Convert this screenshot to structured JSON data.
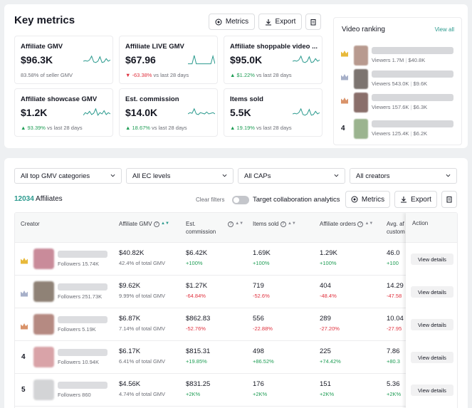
{
  "key_metrics": {
    "title": "Key metrics",
    "metrics_btn": "Metrics",
    "export_btn": "Export",
    "cards": [
      {
        "label": "Affiliate GMV",
        "value": "$96.3K",
        "change": "83.58%",
        "suffix": "of seller GMV",
        "trend": "none",
        "spark": [
          0.5,
          0.55,
          0.5,
          0.6,
          0.9,
          0.45,
          0.4,
          0.5,
          0.85,
          0.4,
          0.45,
          0.7,
          0.5,
          0.6
        ]
      },
      {
        "label": "Affiliate LIVE GMV",
        "value": "$67.96",
        "change": "-63.38%",
        "suffix": "vs last 28 days",
        "trend": "down",
        "spark": [
          0.3,
          0.3,
          0.3,
          0.95,
          0.3,
          0.3,
          0.3,
          0.3,
          0.3,
          0.3,
          0.3,
          0.3,
          0.9,
          0.3
        ]
      },
      {
        "label": "Affiliate shoppable video ...",
        "value": "$95.0K",
        "change": "$1.22%",
        "suffix": "vs last 28 days",
        "trend": "up",
        "spark": [
          0.5,
          0.55,
          0.5,
          0.6,
          0.9,
          0.45,
          0.4,
          0.5,
          0.85,
          0.4,
          0.45,
          0.7,
          0.5,
          0.6
        ]
      },
      {
        "label": "Affiliate showcase GMV",
        "value": "$1.2K",
        "change": "93.39%",
        "suffix": "vs last 28 days",
        "trend": "up",
        "spark": [
          0.4,
          0.6,
          0.5,
          0.7,
          0.45,
          0.55,
          0.9,
          0.4,
          0.6,
          0.5,
          0.75,
          0.45,
          0.6,
          0.5
        ]
      },
      {
        "label": "Est. commission",
        "value": "$14.0K",
        "change": "18.67%",
        "suffix": "vs last 28 days",
        "trend": "up",
        "spark": [
          0.5,
          0.6,
          0.55,
          0.9,
          0.5,
          0.45,
          0.6,
          0.55,
          0.5,
          0.65,
          0.5,
          0.55,
          0.6,
          0.5
        ]
      },
      {
        "label": "Items sold",
        "value": "5.5K",
        "change": "19.19%",
        "suffix": "vs last 28 days",
        "trend": "up",
        "spark": [
          0.5,
          0.55,
          0.5,
          0.6,
          0.9,
          0.45,
          0.4,
          0.5,
          0.85,
          0.4,
          0.45,
          0.7,
          0.5,
          0.6
        ]
      }
    ]
  },
  "video_ranking": {
    "title": "Video ranking",
    "view_all": "View all",
    "items": [
      {
        "rank": "",
        "medal": "gold",
        "thumb": "#b89a8f",
        "viewers": "Viewers 1.7M",
        "gmv": "$40.8K"
      },
      {
        "rank": "",
        "medal": "silver",
        "thumb": "#7c7470",
        "viewers": "Viewers 543.0K",
        "gmv": "$9.6K"
      },
      {
        "rank": "",
        "medal": "bronze",
        "thumb": "#8a6f6b",
        "viewers": "Viewers 157.6K",
        "gmv": "$6.3K"
      },
      {
        "rank": "4",
        "medal": "",
        "thumb": "#9bb48f",
        "viewers": "Viewers 125.4K",
        "gmv": "$6.2K"
      }
    ]
  },
  "filters": {
    "categories": "All top GMV categories",
    "ec_levels": "All EC levels",
    "caps": "All CAPs",
    "creators": "All creators",
    "affiliate_count": "12034",
    "affiliate_label": "Affiliates",
    "clear_filters": "Clear filters",
    "toggle_label": "Target collaboration analytics",
    "metrics_btn": "Metrics",
    "export_btn": "Export"
  },
  "table": {
    "headers": {
      "creator": "Creator",
      "gmv": "Affiliate GMV",
      "commission_1": "Est.",
      "commission_2": "commission",
      "items": "Items sold",
      "orders": "Affiliate orders",
      "avg_1": "Avg. af",
      "avg_2": "custom",
      "action": "Action"
    },
    "details_label": "View details",
    "rows": [
      {
        "rank": "",
        "medal": "gold",
        "avatar": "#c98b9a",
        "followers": "Followers 15.74K",
        "gmv": "$40.82K",
        "gmv_sub": "42.4% of total GMV",
        "commission": "$6.42K",
        "commission_chg": "+100%",
        "commission_trend": "up",
        "items": "1.69K",
        "items_chg": "+100%",
        "items_trend": "up",
        "orders": "1.29K",
        "orders_chg": "+100%",
        "orders_trend": "up",
        "avg": "46.0",
        "avg_chg": "+100",
        "avg_trend": "up"
      },
      {
        "rank": "",
        "medal": "silver",
        "avatar": "#8f8276",
        "followers": "Followers 251.73K",
        "gmv": "$9.62K",
        "gmv_sub": "9.99% of total GMV",
        "commission": "$1.27K",
        "commission_chg": "-64.84%",
        "commission_trend": "down",
        "items": "719",
        "items_chg": "-52.6%",
        "items_trend": "down",
        "orders": "404",
        "orders_chg": "-48.4%",
        "orders_trend": "down",
        "avg": "14.29",
        "avg_chg": "-47.58",
        "avg_trend": "down"
      },
      {
        "rank": "",
        "medal": "bronze",
        "avatar": "#b58a82",
        "followers": "Followers 5.19K",
        "gmv": "$6.87K",
        "gmv_sub": "7.14% of total GMV",
        "commission": "$862.83",
        "commission_chg": "-52.76%",
        "commission_trend": "down",
        "items": "556",
        "items_chg": "-22.88%",
        "items_trend": "down",
        "orders": "289",
        "orders_chg": "-27.20%",
        "orders_trend": "down",
        "avg": "10.04",
        "avg_chg": "-27.95",
        "avg_trend": "down"
      },
      {
        "rank": "4",
        "medal": "",
        "avatar": "#d9a3a8",
        "followers": "Followers 10.94K",
        "gmv": "$6.17K",
        "gmv_sub": "6.41% of total GMV",
        "commission": "$815.31",
        "commission_chg": "+19.85%",
        "commission_trend": "up",
        "items": "498",
        "items_chg": "+86.52%",
        "items_trend": "up",
        "orders": "225",
        "orders_chg": "+74.42%",
        "orders_trend": "up",
        "avg": "7.86",
        "avg_chg": "+80.3",
        "avg_trend": "up"
      },
      {
        "rank": "5",
        "medal": "",
        "avatar": "#d3d4d6",
        "followers": "Followers 860",
        "gmv": "$4.56K",
        "gmv_sub": "4.74% of total GMV",
        "commission": "$831.25",
        "commission_chg": "+2K%",
        "commission_trend": "up",
        "items": "176",
        "items_chg": "+2K%",
        "items_trend": "up",
        "orders": "151",
        "orders_chg": "+2K%",
        "orders_trend": "up",
        "avg": "5.36",
        "avg_chg": "+2K%",
        "avg_trend": "up"
      }
    ]
  },
  "colors": {
    "accent": "#2b9a8e",
    "up": "#1f9d55",
    "down": "#e0323f",
    "gold": "#e8b93a",
    "silver": "#a7b0c9",
    "bronze": "#d9936a"
  }
}
